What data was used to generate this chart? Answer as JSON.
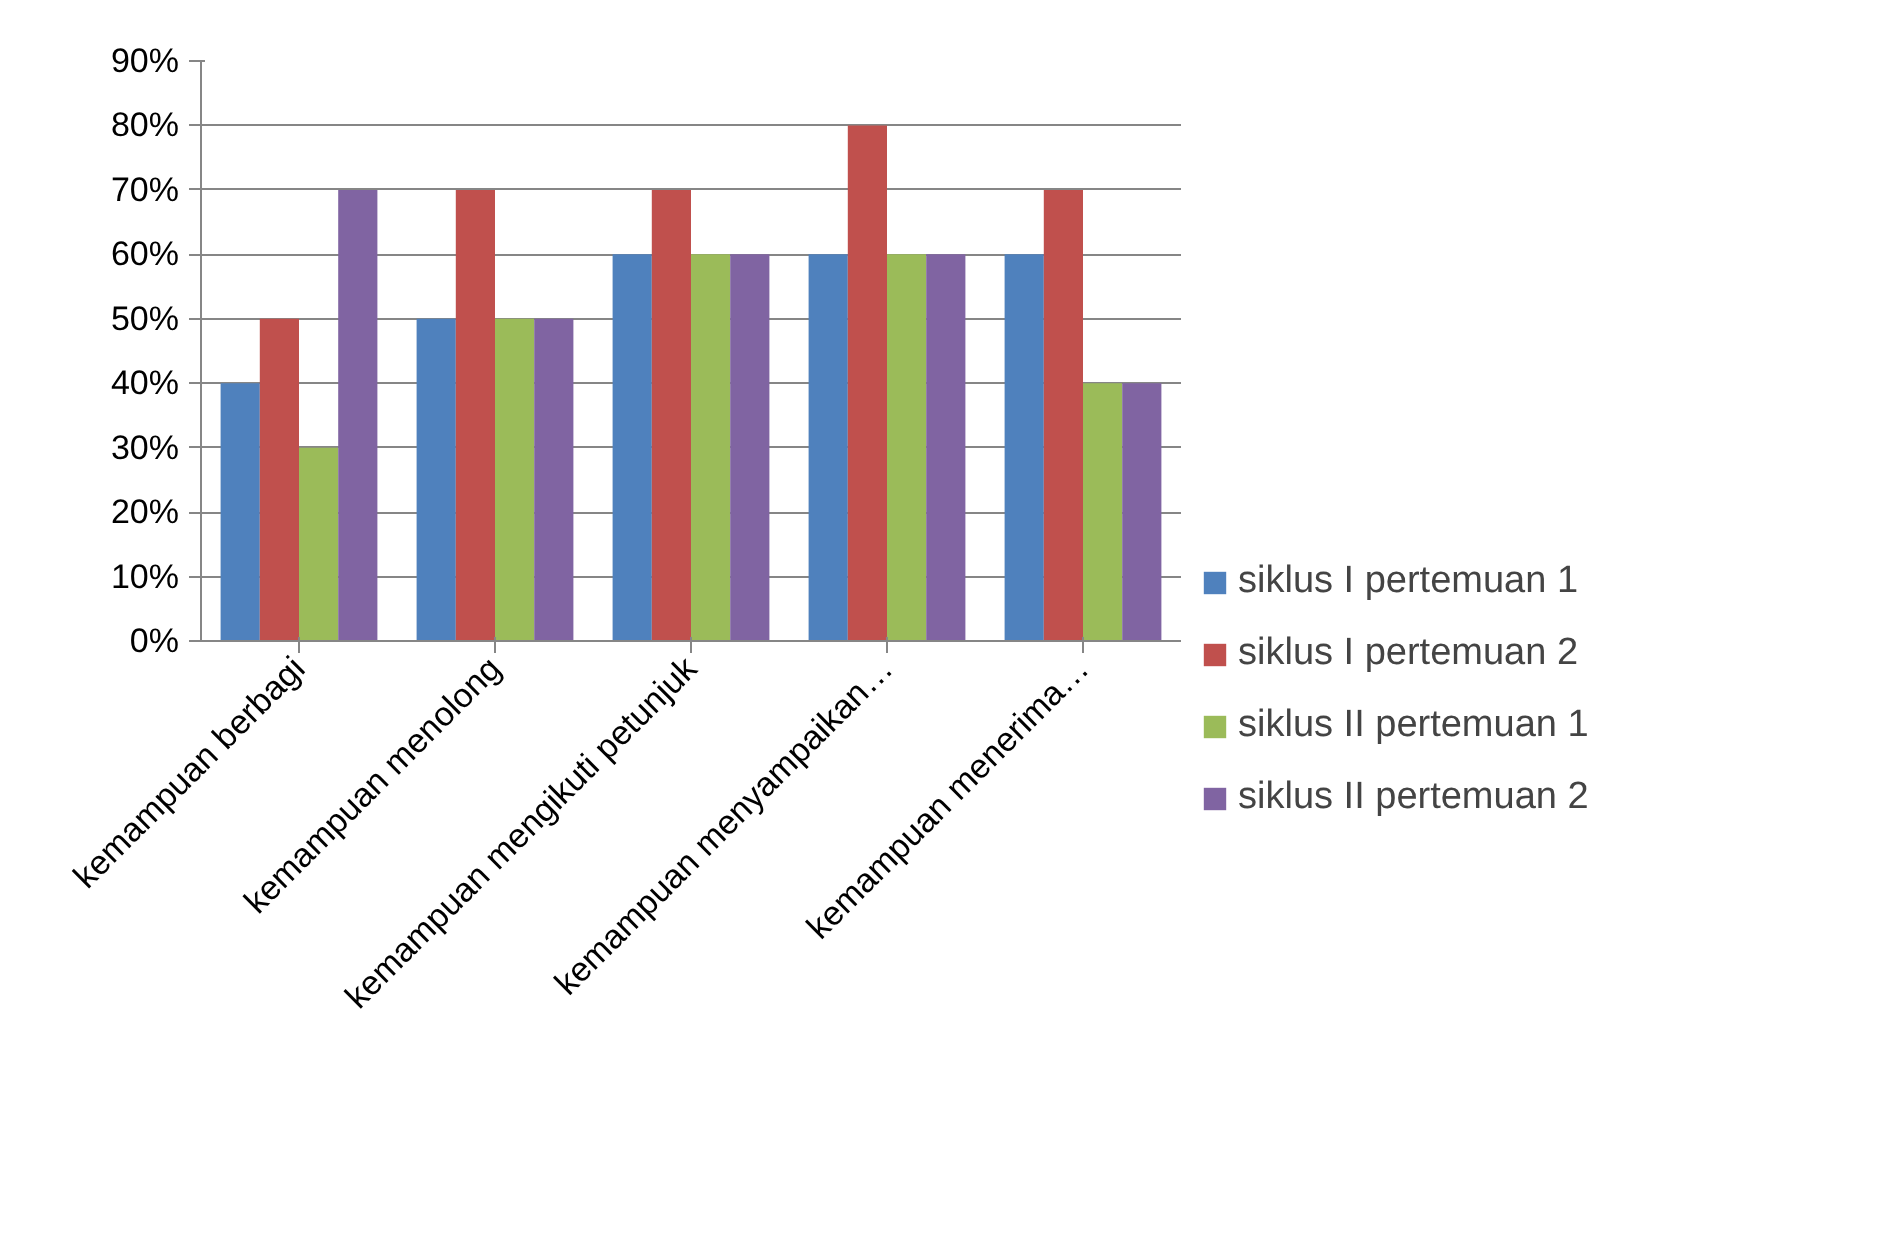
{
  "chart_data": {
    "type": "bar",
    "categories": [
      "kemampuan berbagi",
      "kemampuan menolong",
      "kemampuan mengikuti petunjuk",
      "kemampuan menyampaikan…",
      "kemampuan menerima…"
    ],
    "series": [
      {
        "name": "siklus I pertemuan 1",
        "color": "#4f81bd",
        "values": [
          40,
          50,
          60,
          60,
          60
        ]
      },
      {
        "name": "siklus I pertemuan 2",
        "color": "#c0504d",
        "values": [
          50,
          70,
          70,
          80,
          70
        ]
      },
      {
        "name": "siklus II pertemuan 1",
        "color": "#9bbb59",
        "values": [
          30,
          50,
          60,
          60,
          40
        ]
      },
      {
        "name": "siklus II pertemuan 2",
        "color": "#8064a2",
        "values": [
          70,
          50,
          60,
          60,
          40
        ]
      }
    ],
    "ylim": [
      0,
      90
    ],
    "yticks": [
      {
        "value": 0,
        "label": "0%"
      },
      {
        "value": 10,
        "label": "10%"
      },
      {
        "value": 20,
        "label": "20%"
      },
      {
        "value": 30,
        "label": "30%"
      },
      {
        "value": 40,
        "label": "40%"
      },
      {
        "value": 50,
        "label": "50%"
      },
      {
        "value": 60,
        "label": "60%"
      },
      {
        "value": 70,
        "label": "70%"
      },
      {
        "value": 80,
        "label": "80%"
      },
      {
        "value": 90,
        "label": "90%"
      }
    ],
    "grid": "y",
    "legend": "right"
  }
}
